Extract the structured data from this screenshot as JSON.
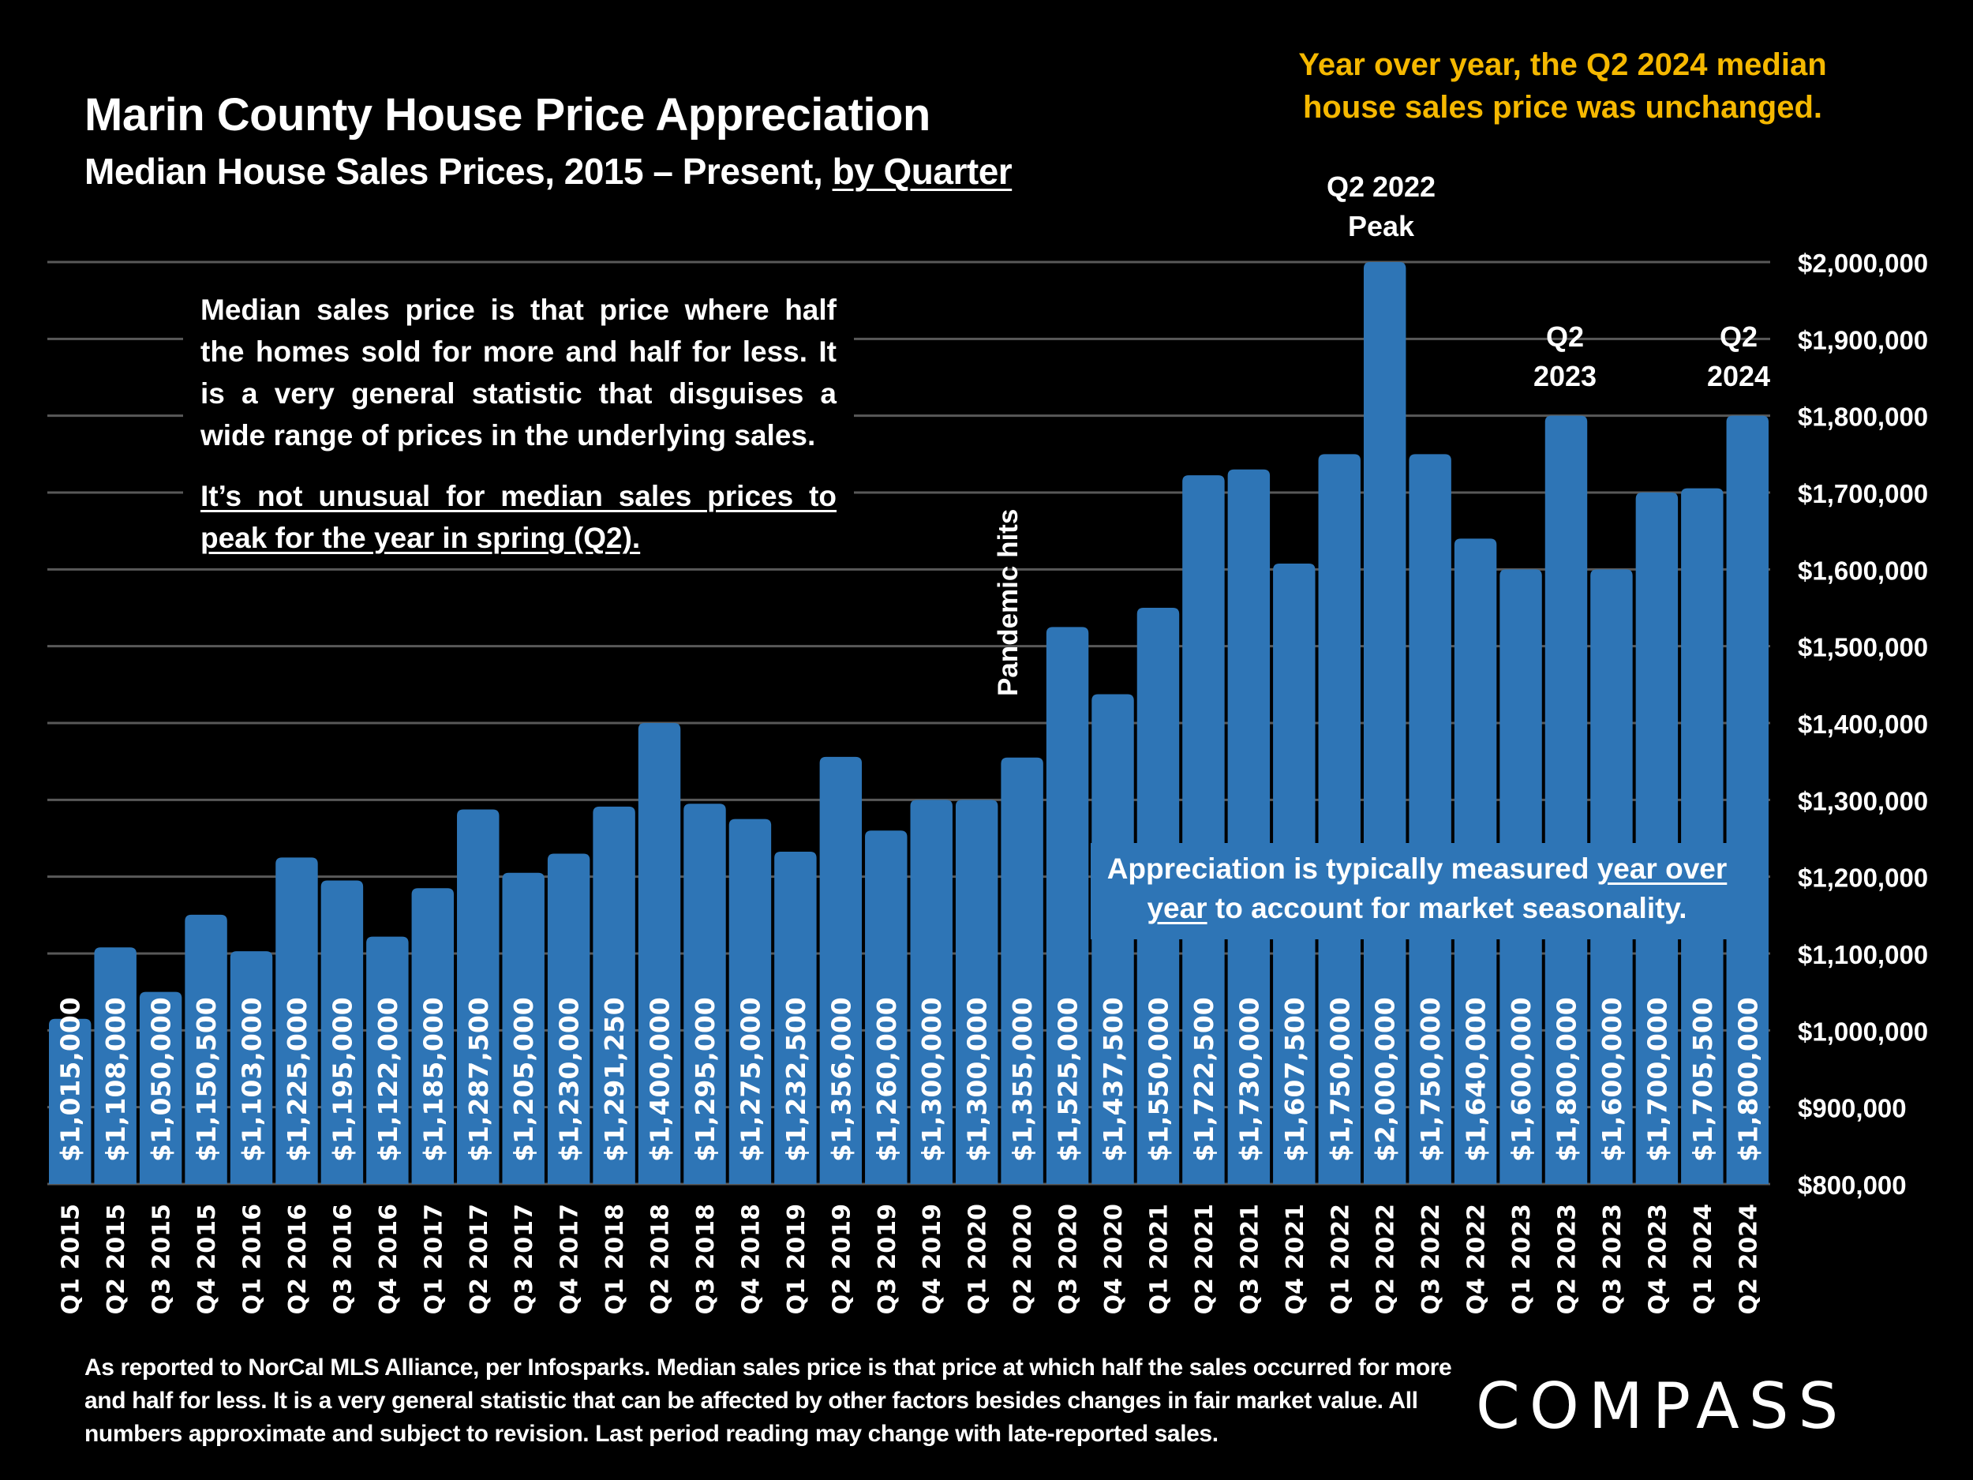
{
  "header": {
    "title": "Marin County House Price Appreciation",
    "subtitle_main": "Median House Sales Prices, 2015 – Present, ",
    "subtitle_link": "by Quarter"
  },
  "callouts": {
    "yoy_headline_line1": "Year over year, the Q2 2024 median",
    "yoy_headline_line2": "house sales price was unchanged.",
    "peak_line1": "Q2 2022",
    "peak_line2": "Peak",
    "q2_2023_line1": "Q2",
    "q2_2023_line2": "2023",
    "q2_2024_line1": "Q2",
    "q2_2024_line2": "2024",
    "pandemic": "Pandemic hits",
    "explain_p1": "Median sales price is that price where half the homes sold for more and half for less. It is a very general statistic that disguises a wide range of prices in the underlying sales.",
    "explain_p2": "It’s not unusual for median sales prices to peak for the year in spring (Q2).",
    "yoy_box_pre": "Appreciation is typically measured ",
    "yoy_box_u1": "year over",
    "yoy_box_u2": "year",
    "yoy_box_post": " to account for market seasonality."
  },
  "footer": {
    "footnote": "As reported to NorCal MLS Alliance, per Infosparks. Median sales price is that price at which half the sales occurred for more and half for less. It is a very general statistic that can be affected by other factors besides changes in fair market value. All numbers approximate and subject to revision. Last period reading may change with late-reported sales.",
    "logo": "COMPASS"
  },
  "colors": {
    "bar": "#2E75B6",
    "accent": "#F5B800",
    "gridline": "#595959",
    "background": "#000000"
  },
  "chart_data": {
    "type": "bar",
    "title": "Marin County House Price Appreciation",
    "subtitle": "Median House Sales Prices, 2015 – Present, by Quarter",
    "xlabel": "",
    "ylabel": "",
    "ylim": [
      800000,
      2000000
    ],
    "y_axis_side": "right",
    "y_ticks": [
      800000,
      900000,
      1000000,
      1100000,
      1200000,
      1300000,
      1400000,
      1500000,
      1600000,
      1700000,
      1800000,
      1900000,
      2000000
    ],
    "y_tick_labels": [
      "$800,000",
      "$900,000",
      "$1,000,000",
      "$1,100,000",
      "$1,200,000",
      "$1,300,000",
      "$1,400,000",
      "$1,500,000",
      "$1,600,000",
      "$1,700,000",
      "$1,800,000",
      "$1,900,000",
      "$2,000,000"
    ],
    "grid": true,
    "categories": [
      "Q1 2015",
      "Q2 2015",
      "Q3 2015",
      "Q4 2015",
      "Q1 2016",
      "Q2 2016",
      "Q3 2016",
      "Q4 2016",
      "Q1 2017",
      "Q2 2017",
      "Q3 2017",
      "Q4 2017",
      "Q1 2018",
      "Q2 2018",
      "Q3 2018",
      "Q4 2018",
      "Q1 2019",
      "Q2 2019",
      "Q3 2019",
      "Q4 2019",
      "Q1 2020",
      "Q2 2020",
      "Q3 2020",
      "Q4 2020",
      "Q1 2021",
      "Q2 2021",
      "Q3 2021",
      "Q4 2021",
      "Q1 2022",
      "Q2 2022",
      "Q3 2022",
      "Q4 2022",
      "Q1 2023",
      "Q2 2023",
      "Q3 2023",
      "Q4 2023",
      "Q1 2024",
      "Q2 2024"
    ],
    "values": [
      1015000,
      1108000,
      1050000,
      1150500,
      1103000,
      1225000,
      1195000,
      1122000,
      1185000,
      1287500,
      1205000,
      1230000,
      1291250,
      1400000,
      1295000,
      1275000,
      1232500,
      1356000,
      1260000,
      1300000,
      1300000,
      1355000,
      1525000,
      1437500,
      1550000,
      1722500,
      1730000,
      1607500,
      1750000,
      2000000,
      1750000,
      1640000,
      1600000,
      1800000,
      1600000,
      1700000,
      1705500,
      1800000
    ],
    "data_labels": [
      "$1,015,000",
      "$1,108,000",
      "$1,050,000",
      "$1,150,500",
      "$1,103,000",
      "$1,225,000",
      "$1,195,000",
      "$1,122,000",
      "$1,185,000",
      "$1,287,500",
      "$1,205,000",
      "$1,230,000",
      "$1,291,250",
      "$1,400,000",
      "$1,295,000",
      "$1,275,000",
      "$1,232,500",
      "$1,356,000",
      "$1,260,000",
      "$1,300,000",
      "$1,300,000",
      "$1,355,000",
      "$1,525,000",
      "$1,437,500",
      "$1,550,000",
      "$1,722,500",
      "$1,730,000",
      "$1,607,500",
      "$1,750,000",
      "$2,000,000",
      "$1,750,000",
      "$1,640,000",
      "$1,600,000",
      "$1,800,000",
      "$1,600,000",
      "$1,700,000",
      "$1,705,500",
      "$1,800,000"
    ]
  }
}
